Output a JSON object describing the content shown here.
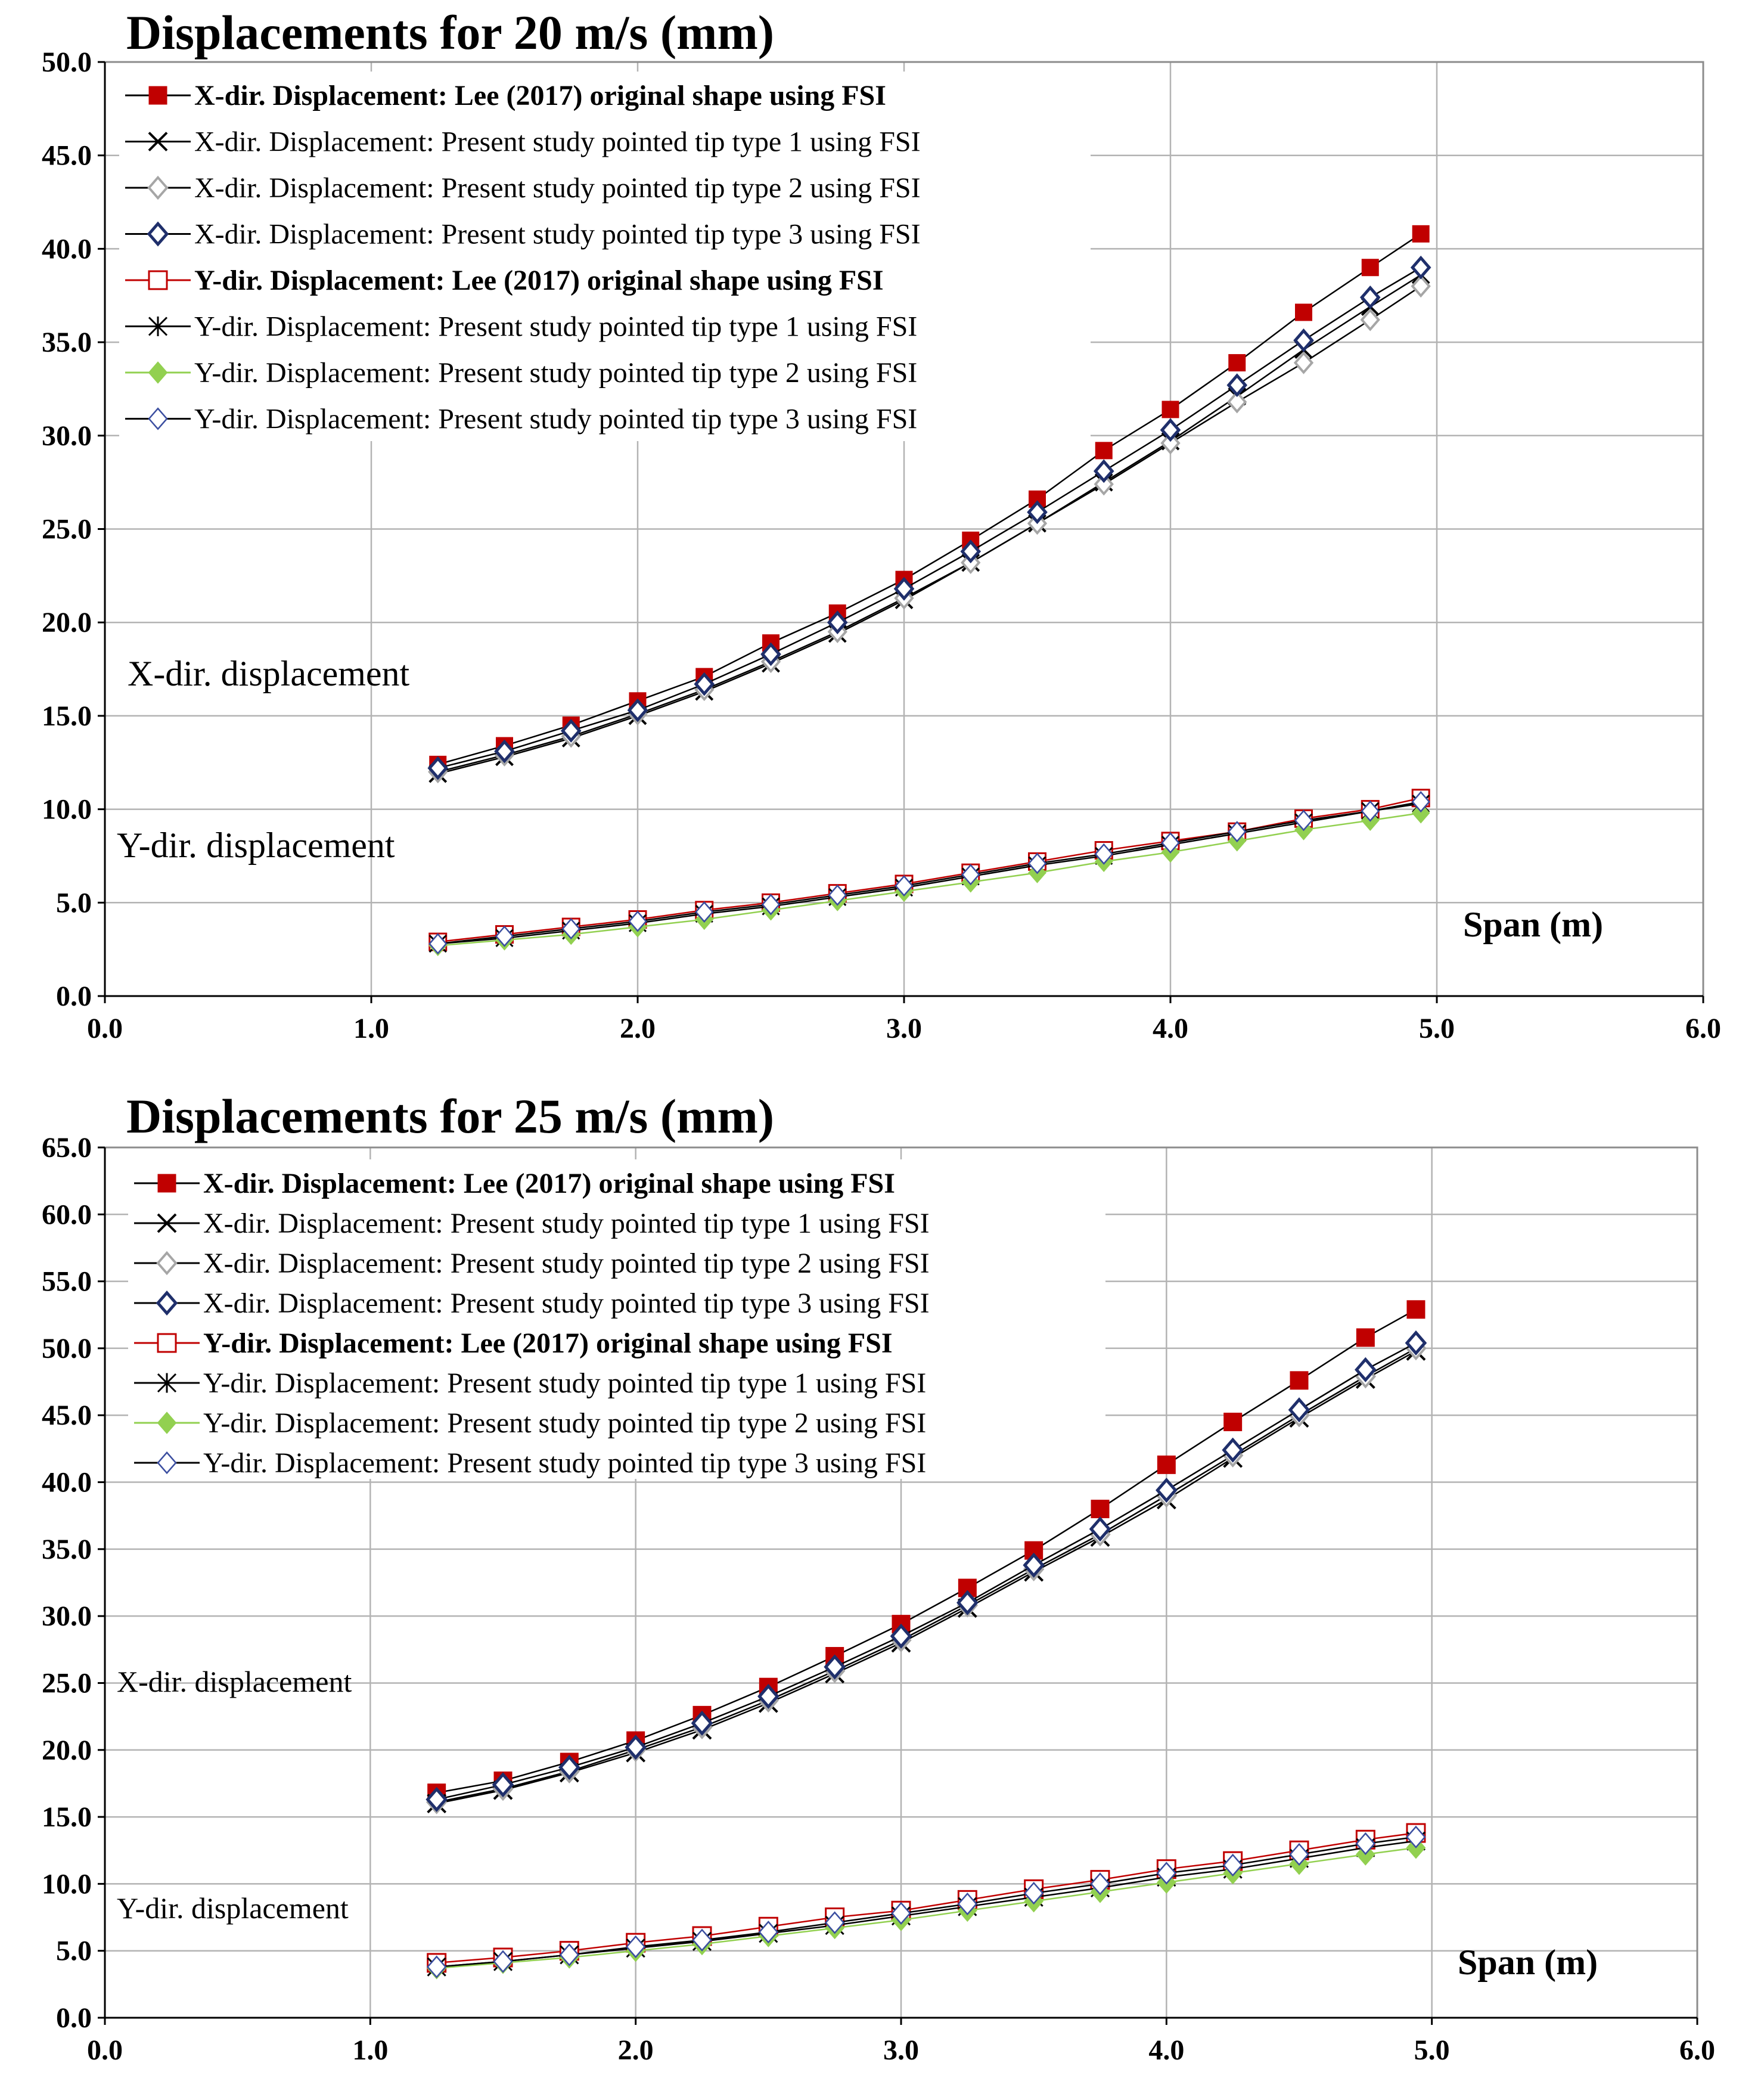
{
  "chart_data": [
    {
      "type": "line",
      "title": "Displacements for 20 m/s (mm)",
      "xlabel": "Span (m)",
      "ylabel": "",
      "xlim": [
        0,
        6
      ],
      "ylim": [
        0,
        50
      ],
      "x_ticks": [
        "0.0",
        "1.0",
        "2.0",
        "3.0",
        "4.0",
        "5.0",
        "6.0"
      ],
      "y_ticks": [
        "0.0",
        "5.0",
        "10.0",
        "15.0",
        "20.0",
        "25.0",
        "30.0",
        "35.0",
        "40.0",
        "45.0",
        "50.0"
      ],
      "legend_position": "top-left",
      "annotations": [
        "X-dir. displacement",
        "Y-dir. displacement"
      ],
      "x": [
        1.25,
        1.5,
        1.75,
        2.0,
        2.25,
        2.5,
        2.75,
        3.0,
        3.25,
        3.5,
        3.75,
        4.0,
        4.25,
        4.5,
        4.75,
        4.94
      ],
      "series": [
        {
          "name": "X-dir. Displacement: Lee (2017) original shape using FSI",
          "marker": "square-filled",
          "color": "#c00000",
          "bold": true,
          "values": [
            12.4,
            13.4,
            14.5,
            15.8,
            17.1,
            18.9,
            20.5,
            22.3,
            24.4,
            26.6,
            29.2,
            31.4,
            33.9,
            36.6,
            39.0,
            40.8
          ]
        },
        {
          "name": "X-dir. Displacement: Present study pointed tip type 1 using FSI",
          "marker": "x-star",
          "color": "#000000",
          "bold": false,
          "values": [
            11.9,
            12.8,
            13.8,
            15.0,
            16.3,
            17.8,
            19.4,
            21.2,
            23.2,
            25.3,
            27.5,
            29.7,
            32.1,
            34.6,
            36.9,
            38.6
          ]
        },
        {
          "name": "X-dir. Displacement: Present study pointed tip type 2 using FSI",
          "marker": "diamond-gray",
          "color": "#a6a6a6",
          "bold": false,
          "values": [
            12.0,
            12.9,
            13.9,
            15.1,
            16.4,
            17.9,
            19.5,
            21.3,
            23.2,
            25.3,
            27.4,
            29.6,
            31.8,
            33.9,
            36.2,
            38.0
          ]
        },
        {
          "name": "X-dir. Displacement: Present study pointed tip type 3 using FSI",
          "marker": "diamond-navy",
          "color": "#1f2f6b",
          "bold": false,
          "values": [
            12.2,
            13.1,
            14.2,
            15.3,
            16.7,
            18.3,
            20.0,
            21.8,
            23.8,
            25.9,
            28.1,
            30.3,
            32.7,
            35.1,
            37.4,
            39.0
          ]
        },
        {
          "name": "Y-dir. Displacement: Lee (2017) original shape using FSI",
          "marker": "square-open-red",
          "color": "#c00000",
          "bold": true,
          "values": [
            2.9,
            3.3,
            3.7,
            4.1,
            4.6,
            5.0,
            5.5,
            6.0,
            6.6,
            7.2,
            7.8,
            8.3,
            8.8,
            9.5,
            10.0,
            10.6
          ]
        },
        {
          "name": "Y-dir. Displacement: Present study pointed tip type 1 using FSI",
          "marker": "star",
          "color": "#000000",
          "bold": false,
          "values": [
            2.8,
            3.1,
            3.5,
            3.9,
            4.4,
            4.8,
            5.3,
            5.8,
            6.4,
            7.0,
            7.5,
            8.1,
            8.7,
            9.3,
            9.9,
            10.3
          ]
        },
        {
          "name": "Y-dir. Displacement: Present study pointed tip type 2 using FSI",
          "marker": "diamond-green",
          "color": "#92d050",
          "bold": false,
          "values": [
            2.7,
            3.0,
            3.3,
            3.7,
            4.1,
            4.6,
            5.1,
            5.6,
            6.1,
            6.6,
            7.2,
            7.7,
            8.3,
            8.9,
            9.4,
            9.8
          ]
        },
        {
          "name": "Y-dir. Displacement: Present study pointed tip type 3 using FSI",
          "marker": "diamond-open-blue",
          "color": "#3b4ea0",
          "bold": false,
          "values": [
            2.8,
            3.2,
            3.6,
            4.0,
            4.5,
            4.9,
            5.4,
            5.9,
            6.5,
            7.1,
            7.6,
            8.2,
            8.8,
            9.4,
            9.9,
            10.4
          ]
        }
      ]
    },
    {
      "type": "line",
      "title": "Displacements for 25 m/s (mm)",
      "xlabel": "Span (m)",
      "ylabel": "",
      "xlim": [
        0,
        6
      ],
      "ylim": [
        0,
        65
      ],
      "x_ticks": [
        "0.0",
        "1.0",
        "2.0",
        "3.0",
        "4.0",
        "5.0",
        "6.0"
      ],
      "y_ticks": [
        "0.0",
        "5.0",
        "10.0",
        "15.0",
        "20.0",
        "25.0",
        "30.0",
        "35.0",
        "40.0",
        "45.0",
        "50.0",
        "55.0",
        "60.0",
        "65.0"
      ],
      "legend_position": "top-left",
      "annotations": [
        "X-dir. displacement",
        "Y-dir. displacement"
      ],
      "x": [
        1.25,
        1.5,
        1.75,
        2.0,
        2.25,
        2.5,
        2.75,
        3.0,
        3.25,
        3.5,
        3.75,
        4.0,
        4.25,
        4.5,
        4.75,
        4.94
      ],
      "series": [
        {
          "name": "X-dir. Displacement: Lee (2017) original shape using FSI",
          "marker": "square-filled",
          "color": "#c00000",
          "bold": true,
          "values": [
            16.8,
            17.7,
            19.1,
            20.7,
            22.6,
            24.7,
            27.0,
            29.4,
            32.1,
            34.9,
            38.0,
            41.3,
            44.5,
            47.6,
            50.8,
            52.9
          ]
        },
        {
          "name": "X-dir. Displacement: Present study pointed tip type 1 using FSI",
          "marker": "x-star",
          "color": "#000000",
          "bold": false,
          "values": [
            16.0,
            17.0,
            18.3,
            19.8,
            21.5,
            23.5,
            25.7,
            28.0,
            30.6,
            33.3,
            35.9,
            38.7,
            41.8,
            44.8,
            47.7,
            49.8
          ]
        },
        {
          "name": "X-dir. Displacement: Present study pointed tip type 2 using FSI",
          "marker": "diamond-gray",
          "color": "#a6a6a6",
          "bold": false,
          "values": [
            16.1,
            17.1,
            18.4,
            20.0,
            21.7,
            23.7,
            25.9,
            28.2,
            30.8,
            33.5,
            36.1,
            39.0,
            42.0,
            45.0,
            47.9,
            50.0
          ]
        },
        {
          "name": "X-dir. Displacement: Present study pointed tip type 3 using FSI",
          "marker": "diamond-navy",
          "color": "#1f2f6b",
          "bold": false,
          "values": [
            16.3,
            17.4,
            18.7,
            20.2,
            22.0,
            24.0,
            26.2,
            28.5,
            31.0,
            33.8,
            36.5,
            39.4,
            42.4,
            45.4,
            48.4,
            50.4
          ]
        },
        {
          "name": "Y-dir. Displacement: Lee (2017) original shape using FSI",
          "marker": "square-open-red",
          "color": "#c00000",
          "bold": true,
          "values": [
            4.1,
            4.5,
            5.0,
            5.6,
            6.1,
            6.8,
            7.5,
            8.0,
            8.8,
            9.6,
            10.3,
            11.1,
            11.7,
            12.5,
            13.3,
            13.8
          ]
        },
        {
          "name": "Y-dir. Displacement: Present study pointed tip type 1 using FSI",
          "marker": "star",
          "color": "#000000",
          "bold": false,
          "values": [
            3.8,
            4.2,
            4.7,
            5.2,
            5.7,
            6.3,
            6.9,
            7.6,
            8.3,
            9.0,
            9.7,
            10.5,
            11.1,
            11.9,
            12.7,
            13.2
          ]
        },
        {
          "name": "Y-dir. Displacement: Present study pointed tip type 2 using FSI",
          "marker": "diamond-green",
          "color": "#92d050",
          "bold": false,
          "values": [
            3.7,
            4.1,
            4.5,
            5.0,
            5.5,
            6.1,
            6.7,
            7.3,
            8.0,
            8.7,
            9.4,
            10.1,
            10.8,
            11.5,
            12.2,
            12.7
          ]
        },
        {
          "name": "Y-dir. Displacement: Present study pointed tip type 3 using FSI",
          "marker": "diamond-open-blue",
          "color": "#3b4ea0",
          "bold": false,
          "values": [
            3.8,
            4.2,
            4.7,
            5.3,
            5.8,
            6.4,
            7.1,
            7.8,
            8.5,
            9.3,
            10.0,
            10.8,
            11.4,
            12.2,
            13.0,
            13.5
          ]
        }
      ]
    }
  ]
}
